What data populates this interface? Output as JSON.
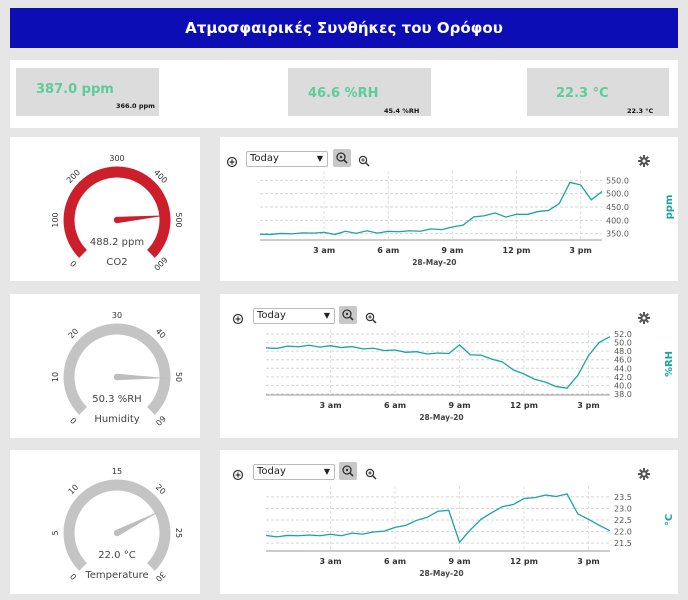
{
  "header": {
    "title": "Ατμοσφαιρικές Συνθήκες του Ορόφου"
  },
  "stats": [
    {
      "main": "387.0 ppm",
      "sub": "366.0 ppm"
    },
    {
      "main": "46.6 %RH",
      "sub": "45.4 %RH"
    },
    {
      "main": "22.3 °C",
      "sub": "22.3 °C"
    }
  ],
  "panels": [
    {
      "id": "co2",
      "gauge": {
        "value": 488.2,
        "min": 0,
        "max": 600,
        "ticks": [
          "0",
          "100",
          "200",
          "300",
          "400",
          "500",
          "600"
        ],
        "value_text": "488.2 ppm",
        "label": "CO2",
        "color": "#cc1f2b",
        "needle_color": "#cc1f2b"
      },
      "chart": {
        "range_select": "Today",
        "date_label": "28-May-20",
        "x_ticks": [
          "3 am",
          "6 am",
          "9 am",
          "12 pm",
          "3 pm"
        ],
        "y_ticks": [
          "350.0",
          "400.0",
          "450.0",
          "500.0",
          "550.0"
        ],
        "unit": "ppm",
        "line_color": "#1aa3a3"
      }
    },
    {
      "id": "humidity",
      "gauge": {
        "value": 50.3,
        "min": 0,
        "max": 60,
        "ticks": [
          "0",
          "10",
          "20",
          "30",
          "40",
          "50",
          "60"
        ],
        "value_text": "50.3 %RH",
        "label": "Humidity",
        "color": "#c4c4c4",
        "needle_color": "#bdbdbd"
      },
      "chart": {
        "range_select": "Today",
        "date_label": "28-May-20",
        "x_ticks": [
          "3 am",
          "6 am",
          "9 am",
          "12 pm",
          "3 pm"
        ],
        "y_ticks": [
          "38.0",
          "40.0",
          "42.0",
          "44.0",
          "46.0",
          "48.0",
          "50.0",
          "52.0"
        ],
        "unit": "%RH",
        "line_color": "#1aa3a3"
      }
    },
    {
      "id": "temperature",
      "gauge": {
        "value": 22.0,
        "min": 0,
        "max": 30,
        "ticks": [
          "0",
          "5",
          "10",
          "15",
          "20",
          "25",
          "30"
        ],
        "value_text": "22.0 °C",
        "label": "Temperature",
        "color": "#c4c4c4",
        "needle_color": "#bdbdbd"
      },
      "chart": {
        "range_select": "Today",
        "date_label": "28-May-20",
        "x_ticks": [
          "3 am",
          "6 am",
          "9 am",
          "12 pm",
          "3 pm"
        ],
        "y_ticks": [
          "21.5",
          "22.0",
          "22.5",
          "23.0",
          "23.5"
        ],
        "unit": "°C",
        "line_color": "#1aa3a3"
      }
    }
  ],
  "chart_data": [
    {
      "type": "line",
      "title": "",
      "xlabel": "28-May-20",
      "ylabel": "ppm",
      "ylim": [
        330,
        570
      ],
      "x": [
        0,
        0.5,
        1,
        1.5,
        2,
        2.5,
        3,
        3.5,
        4,
        4.5,
        5,
        5.5,
        6,
        6.5,
        7,
        7.5,
        8,
        8.5,
        9,
        9.5,
        10,
        10.5,
        11,
        11.5,
        12,
        12.5,
        13,
        13.5,
        14,
        14.5,
        15,
        15.5,
        16
      ],
      "series": [
        {
          "values": [
            345,
            350,
            348,
            352,
            350,
            355,
            352,
            350,
            356,
            354,
            358,
            355,
            356,
            360,
            358,
            362,
            365,
            368,
            372,
            385,
            410,
            420,
            425,
            415,
            420,
            425,
            430,
            440,
            460,
            545,
            530,
            480,
            505
          ]
        }
      ]
    },
    {
      "type": "line",
      "title": "",
      "xlabel": "28-May-20",
      "ylabel": "%RH",
      "ylim": [
        38,
        52
      ],
      "x": [
        0,
        0.5,
        1,
        1.5,
        2,
        2.5,
        3,
        3.5,
        4,
        4.5,
        5,
        5.5,
        6,
        6.5,
        7,
        7.5,
        8,
        8.5,
        9,
        9.5,
        10,
        10.5,
        11,
        11.5,
        12,
        12.5,
        13,
        13.5,
        14,
        14.5,
        15,
        15.5,
        16
      ],
      "series": [
        {
          "values": [
            48.6,
            48.8,
            49,
            49.2,
            49.2,
            49.1,
            49.1,
            49,
            48.9,
            48.7,
            48.5,
            48.3,
            48.1,
            47.9,
            47.7,
            47.5,
            47.4,
            47.6,
            49.3,
            47.3,
            46.9,
            46.3,
            45.3,
            43.8,
            42.5,
            41.6,
            40.6,
            39.9,
            39.2,
            42.5,
            46.8,
            50.2,
            51.2
          ]
        }
      ]
    },
    {
      "type": "line",
      "title": "",
      "xlabel": "28-May-20",
      "ylabel": "°C",
      "ylim": [
        21.2,
        23.8
      ],
      "x": [
        0,
        0.5,
        1,
        1.5,
        2,
        2.5,
        3,
        3.5,
        4,
        4.5,
        5,
        5.5,
        6,
        6.5,
        7,
        7.5,
        8,
        8.5,
        9,
        9.5,
        10,
        10.5,
        11,
        11.5,
        12,
        12.5,
        13,
        13.5,
        14,
        14.5,
        15,
        15.5,
        16
      ],
      "series": [
        {
          "values": [
            21.8,
            21.8,
            21.8,
            21.85,
            21.82,
            21.85,
            21.85,
            21.85,
            21.9,
            21.92,
            21.95,
            22.05,
            22.15,
            22.3,
            22.45,
            22.65,
            22.85,
            22.95,
            21.5,
            22.1,
            22.5,
            22.85,
            23.05,
            23.2,
            23.4,
            23.5,
            23.55,
            23.55,
            23.6,
            22.8,
            22.5,
            22.3,
            22.0
          ]
        }
      ]
    }
  ]
}
